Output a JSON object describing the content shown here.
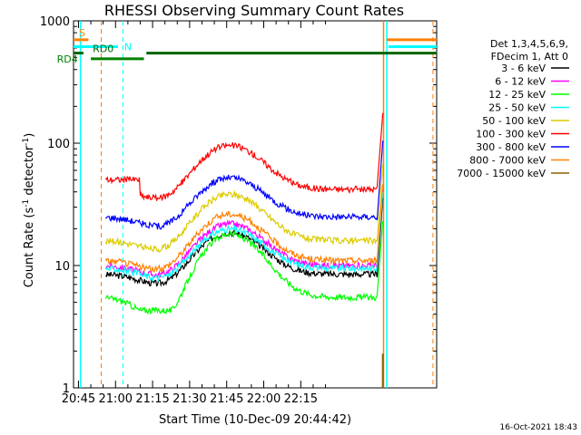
{
  "chart_data": {
    "type": "line",
    "title": "RHESSI Observing Summary Count Rates",
    "xlabel": "Start Time (10-Dec-09 20:44:42)",
    "ylabel_main": "Count Rate (s",
    "ylabel_sup": "-1",
    "ylabel_mid": " detector",
    "ylabel_end": ")",
    "ylog": true,
    "ylim": [
      1,
      1000
    ],
    "xlim_min": [
      -2,
      145
    ],
    "x_ticks": [
      {
        "t": 0,
        "label": "20:45"
      },
      {
        "t": 15,
        "label": "21:00"
      },
      {
        "t": 30,
        "label": "21:15"
      },
      {
        "t": 45,
        "label": "21:30"
      },
      {
        "t": 60,
        "label": "21:45"
      },
      {
        "t": 75,
        "label": "22:00"
      },
      {
        "t": 90,
        "label": "22:15"
      }
    ],
    "y_ticks": [
      {
        "v": 1,
        "label": "1"
      },
      {
        "v": 10,
        "label": "10"
      },
      {
        "v": 100,
        "label": "100"
      },
      {
        "v": 1000,
        "label": "1000"
      }
    ],
    "legend_header": [
      "Det 1,3,4,5,6,9,",
      "FDecim 1, Att 0"
    ],
    "series": [
      {
        "name": "3 - 6 keV",
        "color": "#000000",
        "base": 8.5,
        "amp": 2.2,
        "flat": 0
      },
      {
        "name": "6 - 12 keV",
        "color": "#ff00ff",
        "base": 10.0,
        "amp": 2.2,
        "flat": 0
      },
      {
        "name": "12 - 25 keV",
        "color": "#00ff00",
        "base": 5.5,
        "amp": 3.3,
        "flat": 4.3
      },
      {
        "name": "25 - 50 keV",
        "color": "#00ffff",
        "base": 9.5,
        "amp": 2.1,
        "flat": 0
      },
      {
        "name": "50 - 100 keV",
        "color": "#ddcc00",
        "base": 16.0,
        "amp": 2.4,
        "flat": 0
      },
      {
        "name": "100 - 300 keV",
        "color": "#ff0000",
        "base": 42.0,
        "amp": 2.3,
        "flat": 0
      },
      {
        "name": "300 - 800 keV",
        "color": "#0000ff",
        "base": 25.0,
        "amp": 2.1,
        "flat": 0
      },
      {
        "name": "800 - 7000 keV",
        "color": "#ff8000",
        "base": 11.0,
        "amp": 2.4,
        "flat": 0
      },
      {
        "name": "7000 - 15000 keV",
        "color": "#8b6000",
        "base": 1.0,
        "amp": 1.0,
        "flat": 0
      }
    ],
    "flags": [
      {
        "label": "S",
        "color": "#ff8000"
      },
      {
        "label": "N",
        "color": "#00ffff"
      },
      {
        "label": "RD0",
        "color": "#006400"
      },
      {
        "label": "RD4",
        "color": "#008000"
      }
    ],
    "footer": "16-Oct-2021 18:43"
  }
}
